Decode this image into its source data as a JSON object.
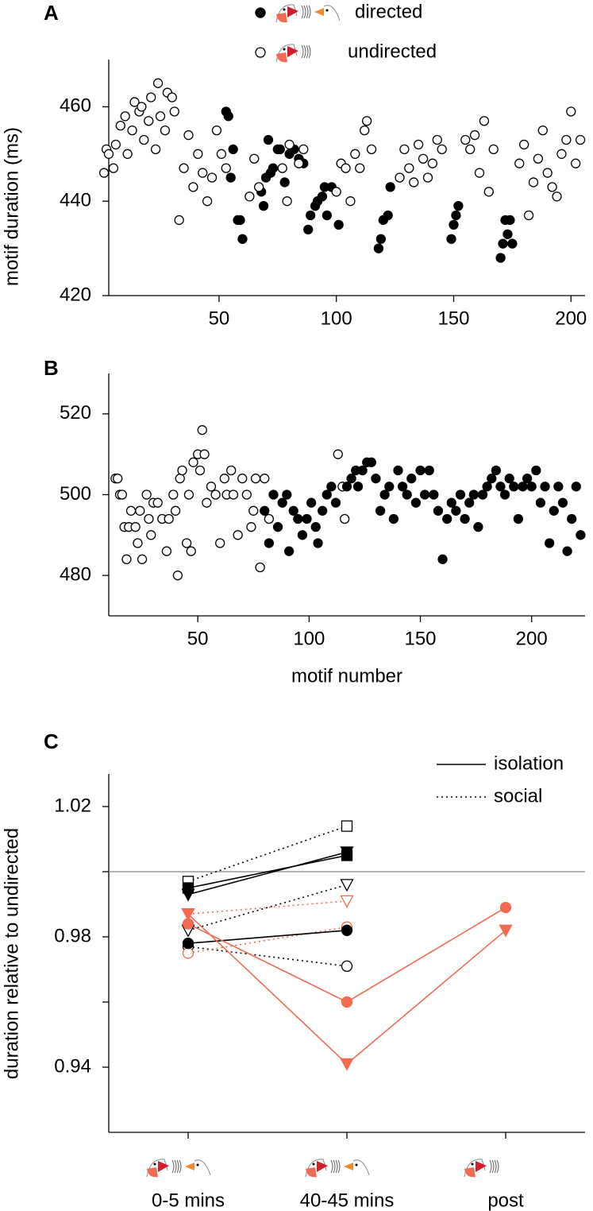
{
  "chart_data": [
    {
      "type": "scatter",
      "panel_label": "A",
      "ylabel": "motif duration (ms)",
      "xlim": [
        3,
        206
      ],
      "ylim": [
        420,
        470
      ],
      "xticks": [
        50,
        100,
        150,
        200
      ],
      "yticks": [
        420,
        440,
        460
      ],
      "series": [
        {
          "name": "directed",
          "color": "#000000",
          "filled": true,
          "x": [
            53,
            54,
            55,
            56,
            58,
            59,
            60,
            68,
            69,
            70,
            71,
            72,
            73,
            75,
            76,
            78,
            80,
            82,
            84,
            86,
            88,
            89,
            91,
            92,
            94,
            95,
            96,
            98,
            101,
            118,
            119,
            120,
            122,
            123,
            149,
            150,
            151,
            152,
            170,
            171,
            172,
            173,
            174,
            175
          ],
          "values": [
            459,
            458,
            445,
            451,
            436,
            436,
            432,
            442,
            439,
            445,
            453,
            446,
            447,
            451,
            451,
            444,
            450,
            451,
            449,
            448,
            434,
            437,
            439,
            440,
            441,
            443,
            437,
            443,
            435,
            430,
            432,
            436,
            437,
            443,
            432,
            435,
            437,
            439,
            428,
            431,
            436,
            433,
            436,
            431
          ]
        },
        {
          "name": "undirected",
          "color": "#000000",
          "filled": false,
          "x": [
            1,
            2,
            3,
            5,
            6,
            8,
            10,
            11,
            13,
            14,
            16,
            17,
            18,
            20,
            21,
            23,
            24,
            25,
            27,
            28,
            30,
            31,
            33,
            35,
            37,
            39,
            41,
            43,
            45,
            47,
            49,
            51,
            53,
            63,
            65,
            67,
            77,
            79,
            80,
            84,
            86,
            100,
            102,
            104,
            106,
            108,
            110,
            112,
            113,
            115,
            127,
            129,
            131,
            133,
            135,
            137,
            139,
            141,
            143,
            145,
            155,
            157,
            159,
            161,
            163,
            165,
            167,
            178,
            180,
            182,
            184,
            186,
            188,
            190,
            192,
            194,
            196,
            198,
            200,
            202,
            204
          ],
          "values": [
            446,
            451,
            450,
            447,
            452,
            456,
            458,
            450,
            455,
            461,
            459,
            460,
            453,
            457,
            462,
            451,
            465,
            458,
            455,
            463,
            462,
            459,
            436,
            447,
            454,
            443,
            450,
            446,
            440,
            445,
            455,
            450,
            447,
            441,
            449,
            443,
            447,
            440,
            452,
            448,
            451,
            442,
            448,
            447,
            440,
            450,
            447,
            455,
            457,
            451,
            445,
            451,
            447,
            444,
            452,
            449,
            445,
            448,
            453,
            451,
            453,
            451,
            454,
            446,
            457,
            442,
            451,
            448,
            452,
            437,
            444,
            449,
            455,
            446,
            443,
            441,
            450,
            453,
            459,
            448,
            453
          ]
        }
      ]
    },
    {
      "type": "scatter",
      "panel_label": "B",
      "xlabel": "motif number",
      "xlim": [
        10,
        224
      ],
      "ylim": [
        470,
        530
      ],
      "xticks": [
        50,
        100,
        150,
        200
      ],
      "yticks": [
        480,
        500,
        520
      ],
      "series": [
        {
          "color": "#000000",
          "filled": false,
          "x": [
            13,
            14,
            15,
            16,
            17,
            18,
            19,
            20,
            22,
            23,
            24,
            25,
            27,
            28,
            29,
            30,
            32,
            34,
            36,
            37,
            39,
            40,
            41,
            42,
            43,
            45,
            46,
            47,
            48,
            50,
            51,
            52,
            53,
            54,
            56,
            58,
            60,
            62,
            63,
            65,
            66,
            68,
            70,
            72,
            74,
            75,
            76,
            78,
            80,
            82,
            113,
            115,
            116
          ],
          "values": [
            504,
            504,
            500,
            500,
            492,
            484,
            492,
            496,
            492,
            488,
            496,
            484,
            500,
            494,
            490,
            498,
            498,
            494,
            486,
            494,
            500,
            496,
            480,
            504,
            506,
            488,
            500,
            486,
            508,
            510,
            506,
            516,
            510,
            498,
            502,
            500,
            488,
            504,
            500,
            506,
            500,
            490,
            504,
            500,
            492,
            496,
            504,
            482,
            504,
            494,
            510,
            502,
            494
          ]
        },
        {
          "color": "#000000",
          "filled": true,
          "x": [
            80,
            82,
            84,
            86,
            88,
            90,
            91,
            93,
            95,
            97,
            99,
            101,
            103,
            104,
            106,
            108,
            110,
            112,
            117,
            119,
            121,
            122,
            124,
            126,
            128,
            130,
            132,
            134,
            136,
            138,
            140,
            142,
            144,
            146,
            148,
            150,
            152,
            154,
            156,
            158,
            160,
            162,
            164,
            166,
            168,
            170,
            172,
            174,
            176,
            178,
            180,
            182,
            184,
            186,
            188,
            190,
            192,
            194,
            196,
            198,
            200,
            202,
            204,
            206,
            208,
            210,
            212,
            214,
            216,
            218,
            220,
            222
          ],
          "values": [
            496,
            488,
            500,
            492,
            498,
            500,
            486,
            496,
            494,
            490,
            494,
            498,
            492,
            488,
            496,
            500,
            502,
            498,
            502,
            504,
            506,
            502,
            506,
            508,
            508,
            504,
            496,
            500,
            502,
            494,
            506,
            502,
            500,
            504,
            498,
            506,
            500,
            506,
            500,
            496,
            484,
            494,
            498,
            496,
            500,
            494,
            498,
            500,
            492,
            500,
            502,
            504,
            506,
            502,
            500,
            504,
            502,
            494,
            502,
            504,
            502,
            506,
            498,
            502,
            488,
            496,
            502,
            498,
            486,
            494,
            502,
            490
          ]
        }
      ]
    },
    {
      "type": "line",
      "panel_label": "C",
      "ylabel": "duration relative to undirected",
      "categories": [
        "0-5 mins",
        "40-45 mins",
        "post"
      ],
      "ylim": [
        0.92,
        1.03
      ],
      "yticks": [
        0.94,
        0.98,
        1.02
      ],
      "yminorticks": [
        0.96,
        1.0
      ],
      "reference_line": 1.0,
      "legend": [
        {
          "label": "isolation",
          "style": "solid"
        },
        {
          "label": "social",
          "style": "dotted"
        }
      ],
      "series": [
        {
          "color": "#000000",
          "style": "dotted",
          "marker": "square",
          "filled": false,
          "values": [
            0.997,
            1.014,
            null
          ]
        },
        {
          "color": "#000000",
          "style": "dotted",
          "marker": "triangle",
          "filled": false,
          "values": [
            0.982,
            0.996,
            null
          ]
        },
        {
          "color": "#000000",
          "style": "dotted",
          "marker": "circle",
          "filled": false,
          "values": [
            0.977,
            0.971,
            null
          ]
        },
        {
          "color": "#f26b50",
          "style": "dotted",
          "marker": "triangle",
          "filled": false,
          "values": [
            0.987,
            0.991,
            null
          ]
        },
        {
          "color": "#f26b50",
          "style": "dotted",
          "marker": "circle",
          "filled": false,
          "values": [
            0.975,
            0.983,
            null
          ]
        },
        {
          "color": "#000000",
          "style": "solid",
          "marker": "square",
          "filled": true,
          "values": [
            0.995,
            1.005,
            null
          ]
        },
        {
          "color": "#000000",
          "style": "solid",
          "marker": "triangle",
          "filled": true,
          "values": [
            0.993,
            1.006,
            null
          ]
        },
        {
          "color": "#000000",
          "style": "solid",
          "marker": "circle",
          "filled": true,
          "values": [
            0.978,
            0.982,
            null
          ]
        },
        {
          "color": "#f26b50",
          "style": "solid",
          "marker": "circle",
          "filled": true,
          "values": [
            0.984,
            0.96,
            0.989
          ]
        },
        {
          "color": "#f26b50",
          "style": "solid",
          "marker": "triangle",
          "filled": true,
          "values": [
            0.987,
            0.941,
            0.982
          ]
        }
      ]
    }
  ]
}
